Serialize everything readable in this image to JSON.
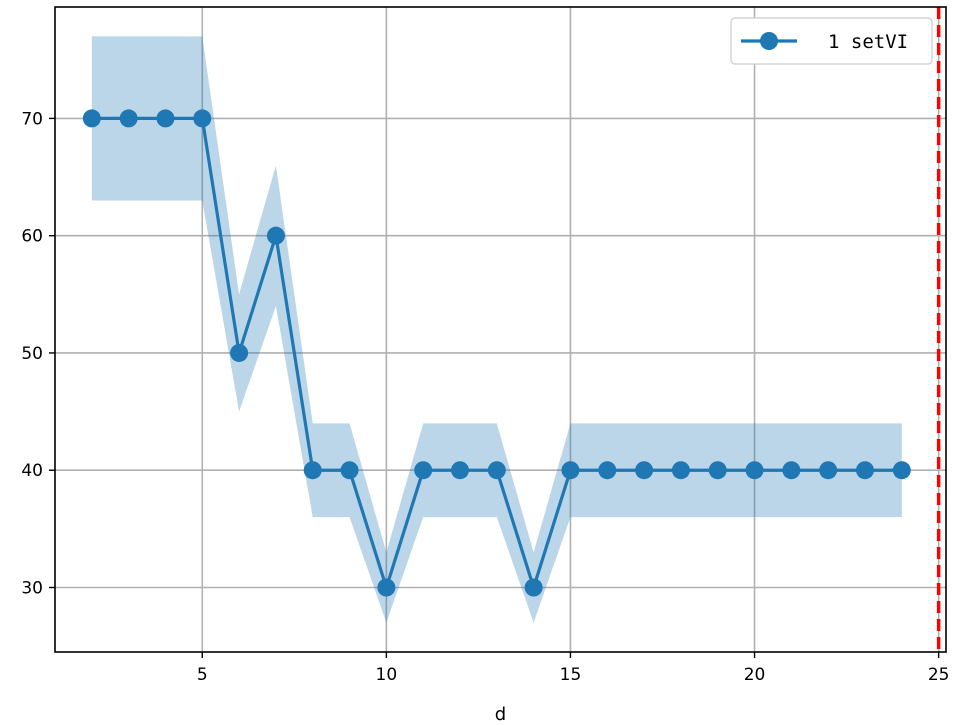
{
  "chart_data": {
    "type": "line",
    "title": "",
    "xlabel": "d",
    "ylabel": "",
    "xlim": [
      1.0,
      25.2
    ],
    "ylim": [
      24.5,
      79.5
    ],
    "xticks": [
      5,
      10,
      15,
      20,
      25
    ],
    "yticks": [
      30,
      40,
      50,
      60,
      70
    ],
    "grid": true,
    "legend_position": "top-right",
    "x": [
      2,
      3,
      4,
      5,
      6,
      7,
      8,
      9,
      10,
      11,
      12,
      13,
      14,
      15,
      16,
      17,
      18,
      19,
      20,
      21,
      22,
      23,
      24
    ],
    "series": [
      {
        "name": "1 setVI",
        "color": "#1f77b4",
        "marker": "circle",
        "values": [
          70,
          70,
          70,
          70,
          50,
          60,
          40,
          40,
          30,
          40,
          40,
          40,
          30,
          40,
          40,
          40,
          40,
          40,
          40,
          40,
          40,
          40,
          40
        ],
        "band_lower": [
          63,
          63,
          63,
          63,
          45,
          54,
          36,
          36,
          27,
          36,
          36,
          36,
          27,
          36,
          36,
          36,
          36,
          36,
          36,
          36,
          36,
          36,
          36
        ],
        "band_upper": [
          77,
          77,
          77,
          77,
          55,
          66,
          44,
          44,
          33,
          44,
          44,
          44,
          33,
          44,
          44,
          44,
          44,
          44,
          44,
          44,
          44,
          44,
          44
        ],
        "band_color": "#1f77b4"
      }
    ],
    "reference_lines": [
      {
        "axis": "x",
        "value": 25,
        "color": "#ff0000",
        "style": "dashed"
      }
    ]
  }
}
